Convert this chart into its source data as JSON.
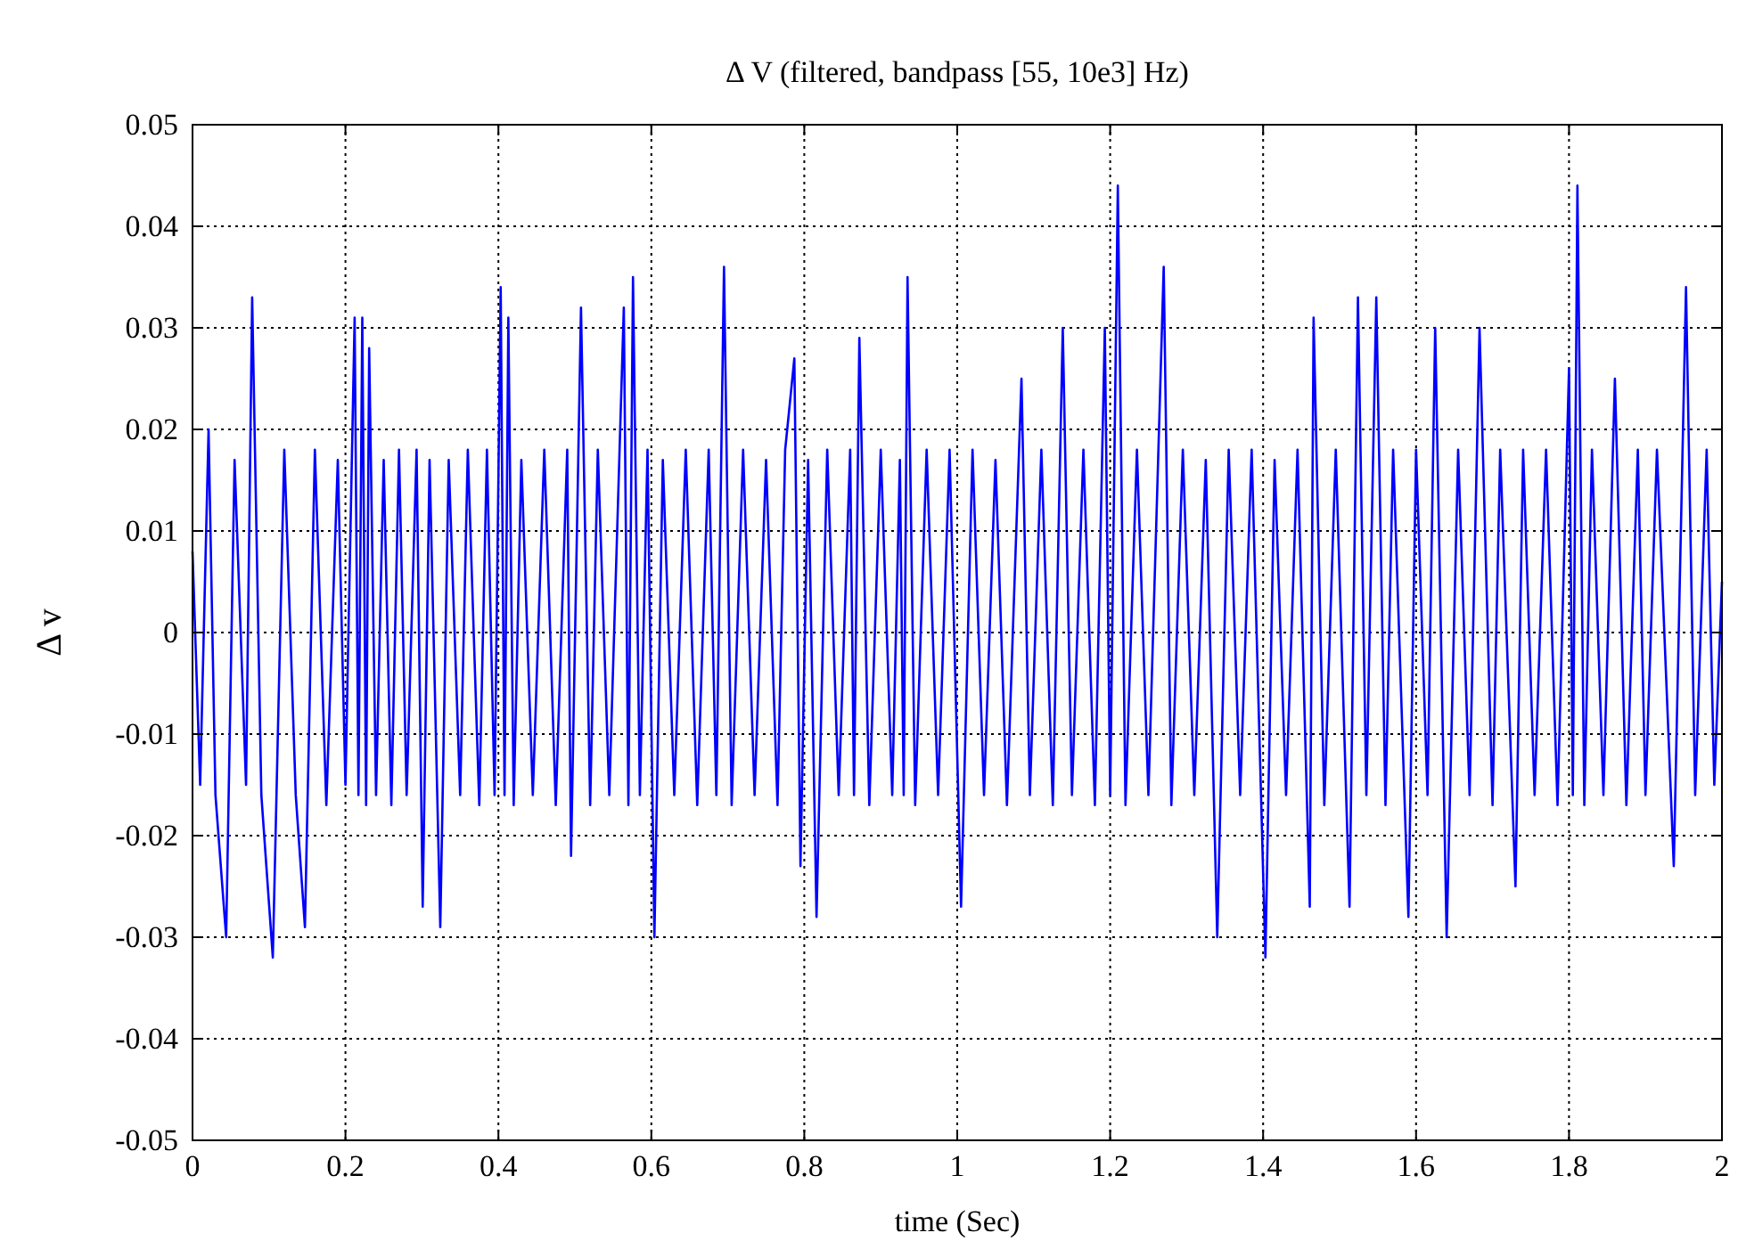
{
  "chart_data": {
    "type": "line",
    "title": "Δ V (filtered, bandpass [55, 10e3] Hz)",
    "xlabel": "time (Sec)",
    "ylabel": "Δ v",
    "xlim": [
      0,
      2
    ],
    "xticks": [
      0,
      0.2,
      0.4,
      0.6,
      0.8,
      1,
      1.2,
      1.4,
      1.6,
      1.8,
      2
    ],
    "ylim": [
      -0.05,
      0.05
    ],
    "yticks": [
      -0.05,
      -0.04,
      -0.03,
      -0.02,
      -0.01,
      0,
      0.01,
      0.02,
      0.03,
      0.04,
      0.05
    ],
    "grid": true,
    "marker": "none",
    "line_style": "solid",
    "series": [
      {
        "color": "#0000ff",
        "x": [
          0,
          0.01,
          0.021,
          0.03,
          0.044,
          0.055,
          0.07,
          0.078,
          0.09,
          0.105,
          0.12,
          0.135,
          0.147,
          0.16,
          0.175,
          0.19,
          0.2,
          0.212,
          0.217,
          0.222,
          0.227,
          0.231,
          0.24,
          0.25,
          0.26,
          0.27,
          0.28,
          0.293,
          0.301,
          0.31,
          0.324,
          0.335,
          0.35,
          0.36,
          0.375,
          0.385,
          0.395,
          0.403,
          0.408,
          0.413,
          0.42,
          0.43,
          0.445,
          0.46,
          0.475,
          0.49,
          0.495,
          0.508,
          0.52,
          0.53,
          0.545,
          0.564,
          0.57,
          0.576,
          0.585,
          0.595,
          0.604,
          0.615,
          0.63,
          0.645,
          0.66,
          0.675,
          0.685,
          0.695,
          0.705,
          0.72,
          0.735,
          0.75,
          0.765,
          0.775,
          0.787,
          0.795,
          0.805,
          0.816,
          0.83,
          0.845,
          0.86,
          0.865,
          0.872,
          0.885,
          0.9,
          0.915,
          0.925,
          0.93,
          0.935,
          0.945,
          0.96,
          0.975,
          0.99,
          1.005,
          1.02,
          1.035,
          1.05,
          1.065,
          1.084,
          1.095,
          1.11,
          1.125,
          1.138,
          1.15,
          1.165,
          1.18,
          1.193,
          1.2,
          1.21,
          1.22,
          1.235,
          1.25,
          1.27,
          1.28,
          1.295,
          1.31,
          1.325,
          1.34,
          1.355,
          1.37,
          1.385,
          1.403,
          1.415,
          1.43,
          1.445,
          1.461,
          1.466,
          1.48,
          1.495,
          1.513,
          1.524,
          1.535,
          1.548,
          1.56,
          1.57,
          1.59,
          1.6,
          1.615,
          1.625,
          1.64,
          1.655,
          1.67,
          1.683,
          1.7,
          1.71,
          1.73,
          1.74,
          1.755,
          1.77,
          1.785,
          1.8,
          1.805,
          1.811,
          1.82,
          1.83,
          1.845,
          1.86,
          1.875,
          1.89,
          1.9,
          1.915,
          1.937,
          1.953,
          1.965,
          1.98,
          1.99,
          2
        ],
        "values": [
          0.008,
          -0.015,
          0.02,
          -0.016,
          -0.03,
          0.017,
          -0.015,
          0.033,
          -0.016,
          -0.032,
          0.018,
          -0.016,
          -0.029,
          0.018,
          -0.017,
          0.017,
          -0.015,
          0.031,
          -0.016,
          0.031,
          -0.017,
          0.028,
          -0.016,
          0.017,
          -0.017,
          0.018,
          -0.016,
          0.018,
          -0.027,
          0.017,
          -0.029,
          0.017,
          -0.016,
          0.018,
          -0.017,
          0.018,
          -0.016,
          0.034,
          -0.016,
          0.031,
          -0.017,
          0.017,
          -0.016,
          0.018,
          -0.017,
          0.018,
          -0.022,
          0.032,
          -0.017,
          0.018,
          -0.016,
          0.032,
          -0.017,
          0.035,
          -0.016,
          0.018,
          -0.03,
          0.017,
          -0.016,
          0.018,
          -0.017,
          0.018,
          -0.016,
          0.036,
          -0.017,
          0.018,
          -0.016,
          0.017,
          -0.017,
          0.018,
          0.027,
          -0.023,
          0.017,
          -0.028,
          0.018,
          -0.016,
          0.018,
          -0.016,
          0.029,
          -0.017,
          0.018,
          -0.016,
          0.017,
          -0.016,
          0.035,
          -0.017,
          0.018,
          -0.016,
          0.018,
          -0.027,
          0.018,
          -0.016,
          0.017,
          -0.017,
          0.025,
          -0.016,
          0.018,
          -0.017,
          0.03,
          -0.016,
          0.018,
          -0.017,
          0.03,
          -0.016,
          0.044,
          -0.017,
          0.018,
          -0.016,
          0.036,
          -0.017,
          0.018,
          -0.016,
          0.017,
          -0.03,
          0.018,
          -0.016,
          0.018,
          -0.032,
          0.017,
          -0.016,
          0.018,
          -0.027,
          0.031,
          -0.017,
          0.018,
          -0.027,
          0.033,
          -0.016,
          0.033,
          -0.017,
          0.018,
          -0.028,
          0.018,
          -0.016,
          0.03,
          -0.03,
          0.018,
          -0.016,
          0.03,
          -0.017,
          0.018,
          -0.025,
          0.018,
          -0.016,
          0.018,
          -0.017,
          0.026,
          -0.016,
          0.044,
          -0.017,
          0.018,
          -0.016,
          0.025,
          -0.017,
          0.018,
          -0.016,
          0.018,
          -0.023,
          0.034,
          -0.016,
          0.018,
          -0.015,
          0.005
        ]
      }
    ]
  }
}
